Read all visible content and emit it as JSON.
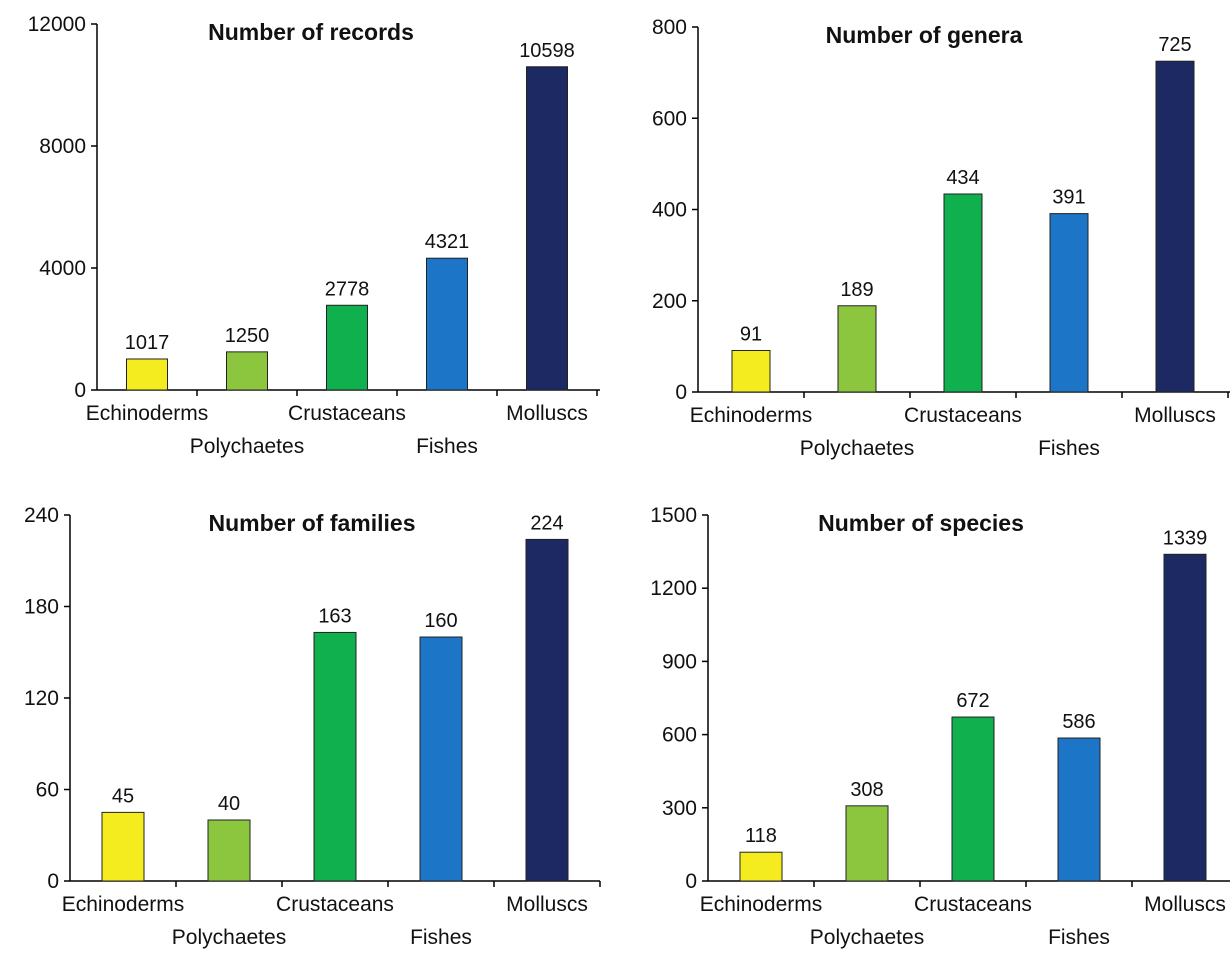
{
  "chart_data": [
    {
      "type": "bar",
      "title": "Number of records",
      "categories": [
        "Echinoderms",
        "Polychaetes",
        "Crustaceans",
        "Fishes",
        "Molluscs"
      ],
      "values": [
        1017,
        1250,
        2778,
        4321,
        10598
      ],
      "value_labels": [
        "1017",
        "1250",
        "2778",
        "4321",
        "10598"
      ],
      "yticks": [
        0,
        4000,
        8000,
        12000
      ],
      "ytick_labels": [
        "0",
        "4000",
        "8000",
        "12000"
      ],
      "ylim": [
        0,
        12000
      ],
      "xlabel": "",
      "ylabel": "",
      "grid": false
    },
    {
      "type": "bar",
      "title": "Number of genera",
      "categories": [
        "Echinoderms",
        "Polychaetes",
        "Crustaceans",
        "Fishes",
        "Molluscs"
      ],
      "values": [
        91,
        189,
        434,
        391,
        725
      ],
      "value_labels": [
        "91",
        "189",
        "434",
        "391",
        "725"
      ],
      "yticks": [
        0,
        200,
        400,
        600,
        800
      ],
      "ytick_labels": [
        "0",
        "200",
        "400",
        "600",
        "800"
      ],
      "ylim": [
        0,
        800
      ],
      "xlabel": "",
      "ylabel": "",
      "grid": false
    },
    {
      "type": "bar",
      "title": "Number of families",
      "categories": [
        "Echinoderms",
        "Polychaetes",
        "Crustaceans",
        "Fishes",
        "Molluscs"
      ],
      "values": [
        45,
        40,
        163,
        160,
        224
      ],
      "value_labels": [
        "45",
        "40",
        "163",
        "160",
        "224"
      ],
      "yticks": [
        0,
        60,
        120,
        180,
        240
      ],
      "ytick_labels": [
        "0",
        "60",
        "120",
        "180",
        "240"
      ],
      "ylim": [
        0,
        240
      ],
      "xlabel": "",
      "ylabel": "",
      "grid": false
    },
    {
      "type": "bar",
      "title": "Number of species",
      "categories": [
        "Echinoderms",
        "Polychaetes",
        "Crustaceans",
        "Fishes",
        "Molluscs"
      ],
      "values": [
        118,
        308,
        672,
        586,
        1339
      ],
      "value_labels": [
        "118",
        "308",
        "672",
        "586",
        "1339"
      ],
      "yticks": [
        0,
        300,
        600,
        900,
        1200,
        1500
      ],
      "ytick_labels": [
        "0",
        "300",
        "600",
        "900",
        "1200",
        "1500"
      ],
      "ylim": [
        0,
        1500
      ],
      "xlabel": "",
      "ylabel": "",
      "grid": false
    }
  ],
  "colors": {
    "Echinoderms": "#f5ec1f",
    "Polychaetes": "#8cc63f",
    "Crustaceans": "#10b04f",
    "Fishes": "#1c75c6",
    "Molluscs": "#1c2962"
  }
}
